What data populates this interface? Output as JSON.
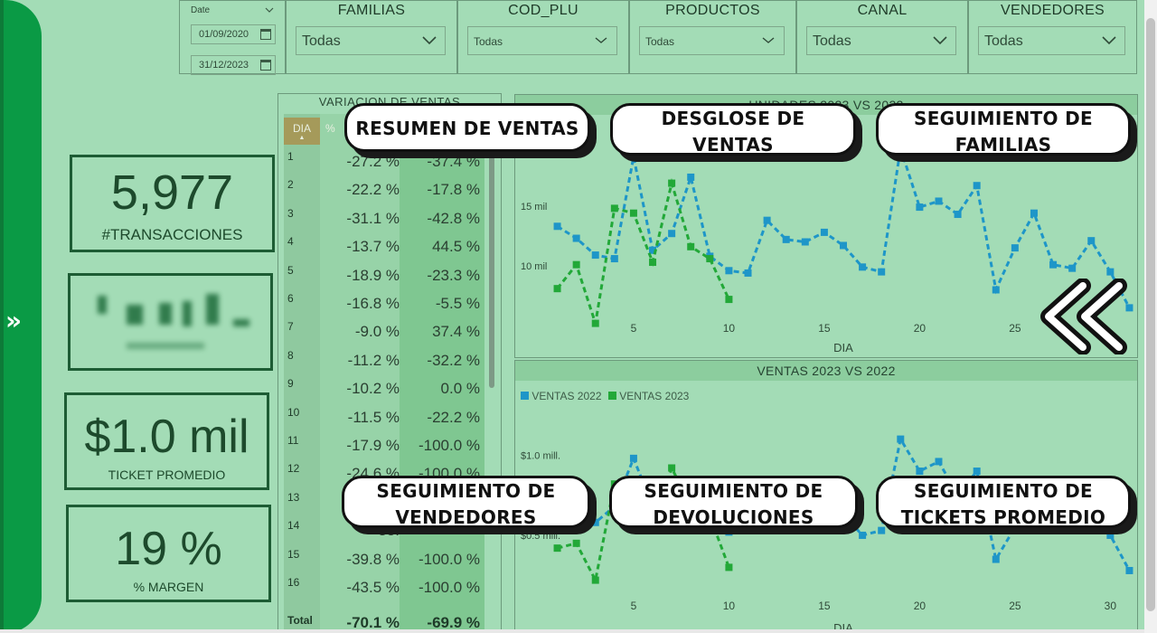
{
  "slicers": {
    "date": {
      "label": "Date",
      "start": "01/09/2020",
      "end": "31/12/2023"
    },
    "familias": {
      "title": "FAMILIAS",
      "value": "Todas"
    },
    "cod_plu": {
      "title": "COD_PLU",
      "value": "Todas"
    },
    "productos": {
      "title": "PRODUCTOS",
      "value": "Todas"
    },
    "canal": {
      "title": "CANAL",
      "value": "Todas"
    },
    "vendedores": {
      "title": "VENDEDORES",
      "value": "Todas"
    }
  },
  "kpis": {
    "transacciones": {
      "value": "5,977",
      "label": "#TRANSACCIONES"
    },
    "ticket": {
      "value": "$1.0 mil",
      "label": "TICKET PROMEDIO"
    },
    "margen": {
      "value": "19 %",
      "label": "% MARGEN"
    }
  },
  "table": {
    "title": "VARIACION DE VENTAS",
    "col_dia": "DIA",
    "col_pct": "%",
    "rows": [
      {
        "dia": "1",
        "a": "-27.2 %",
        "b": "-37.4 %"
      },
      {
        "dia": "2",
        "a": "-22.2 %",
        "b": "-17.8 %"
      },
      {
        "dia": "3",
        "a": "-31.1 %",
        "b": "-42.8 %"
      },
      {
        "dia": "4",
        "a": "-13.7 %",
        "b": "44.5 %"
      },
      {
        "dia": "5",
        "a": "-18.9 %",
        "b": "-23.3 %"
      },
      {
        "dia": "6",
        "a": "-16.8 %",
        "b": "-5.5 %"
      },
      {
        "dia": "7",
        "a": "-9.0 %",
        "b": "37.4 %"
      },
      {
        "dia": "8",
        "a": "-11.2 %",
        "b": "-32.2 %"
      },
      {
        "dia": "9",
        "a": "-10.2 %",
        "b": "0.0 %"
      },
      {
        "dia": "10",
        "a": "-11.5 %",
        "b": "-22.2 %"
      },
      {
        "dia": "11",
        "a": "-17.9 %",
        "b": "-100.0 %"
      },
      {
        "dia": "12",
        "a": "-24.6 %",
        "b": "-100.0 %"
      },
      {
        "dia": "13",
        "a": "",
        "b": ""
      },
      {
        "dia": "14",
        "a": "-35.",
        "b": ""
      },
      {
        "dia": "15",
        "a": "-39.8 %",
        "b": "-100.0 %"
      },
      {
        "dia": "16",
        "a": "-43.5 %",
        "b": "-100.0 %"
      }
    ],
    "total": {
      "label": "Total",
      "a": "-70.1 %",
      "b": "-69.9 %"
    }
  },
  "nav": {
    "resumen": "RESUMEN DE VENTAS",
    "desglose_1": "DESGLOSE DE",
    "desglose_2": "VENTAS",
    "familias_1": "SEGUIMIENTO DE",
    "familias_2": "FAMILIAS",
    "vendedores_1": "SEGUIMIENTO DE",
    "vendedores_2": "VENDEDORES",
    "devoluciones_1": "SEGUIMIENTO DE",
    "devoluciones_2": "DEVOLUCIONES",
    "tickets_1": "SEGUIMIENTO DE",
    "tickets_2": "TICKETS PROMEDIO"
  },
  "colors": {
    "series_2022": "#1e96c8",
    "series_2023": "#22a838",
    "rail": "#0a9a45"
  },
  "chart_data": [
    {
      "type": "line",
      "title": "UNIDADES 2023 VS 2022",
      "xlabel": "DIA",
      "ylabel": "",
      "x_ticks": [
        "5",
        "10",
        "15",
        "20",
        "25"
      ],
      "y_ticks": [
        "10 mil",
        "15 mil"
      ],
      "xlim": [
        0.5,
        31.5
      ],
      "ylim": [
        6000,
        22000
      ],
      "series": [
        {
          "values": [
            [
              1,
              13300
            ],
            [
              2,
              12300
            ],
            [
              3,
              10900
            ],
            [
              4,
              10600
            ],
            [
              5,
              19100
            ],
            [
              6,
              11300
            ],
            [
              7,
              12700
            ],
            [
              8,
              17400
            ],
            [
              9,
              10800
            ],
            [
              10,
              9600
            ],
            [
              11,
              9400
            ],
            [
              12,
              13800
            ],
            [
              13,
              12200
            ],
            [
              14,
              12000
            ],
            [
              15,
              12800
            ],
            [
              16,
              11700
            ],
            [
              17,
              9900
            ],
            [
              18,
              9500
            ],
            [
              19,
              19800
            ],
            [
              20,
              14900
            ],
            [
              21,
              15400
            ],
            [
              22,
              14300
            ],
            [
              23,
              16700
            ],
            [
              24,
              8000
            ],
            [
              25,
              11500
            ],
            [
              26,
              14400
            ],
            [
              27,
              10100
            ],
            [
              28,
              9800
            ],
            [
              29,
              12100
            ],
            [
              30,
              9500
            ],
            [
              31,
              6500
            ]
          ]
        },
        {
          "values": [
            [
              1,
              8100
            ],
            [
              2,
              10100
            ],
            [
              3,
              5200
            ],
            [
              4,
              14800
            ],
            [
              5,
              14400
            ],
            [
              6,
              10300
            ],
            [
              7,
              16900
            ],
            [
              8,
              11600
            ],
            [
              9,
              10600
            ],
            [
              10,
              7200
            ]
          ]
        }
      ]
    },
    {
      "type": "line",
      "title": "VENTAS 2023 VS 2022",
      "xlabel": "DIA",
      "ylabel": "",
      "x_ticks": [
        "5",
        "10",
        "15",
        "20",
        "25",
        "30"
      ],
      "y_ticks": [
        "$0.5 mill.",
        "$1.0 mill."
      ],
      "legend": [
        "VENTAS 2022",
        "VENTAS 2023"
      ],
      "xlim": [
        0.5,
        31.5
      ],
      "ylim": [
        0.15,
        1.25
      ],
      "series": [
        {
          "name": "VENTAS 2022",
          "values": [
            [
              1,
              0.68
            ],
            [
              2,
              0.62
            ],
            [
              3,
              0.58
            ],
            [
              4,
              0.68
            ],
            [
              5,
              0.98
            ],
            [
              6,
              0.68
            ],
            [
              7,
              0.81
            ],
            [
              8,
              0.75
            ],
            [
              9,
              0.71
            ],
            [
              10,
              0.52
            ],
            [
              11,
              0.55
            ],
            [
              12,
              0.56
            ],
            [
              13,
              0.75
            ],
            [
              14,
              0.7
            ],
            [
              15,
              0.78
            ],
            [
              16,
              0.63
            ],
            [
              17,
              0.5
            ],
            [
              18,
              0.53
            ],
            [
              19,
              1.1
            ],
            [
              20,
              0.9
            ],
            [
              21,
              0.96
            ],
            [
              22,
              0.75
            ],
            [
              23,
              0.9
            ],
            [
              24,
              0.35
            ],
            [
              25,
              0.55
            ],
            [
              26,
              0.75
            ],
            [
              27,
              0.7
            ],
            [
              28,
              0.55
            ],
            [
              29,
              0.78
            ],
            [
              30,
              0.5
            ],
            [
              31,
              0.28
            ]
          ]
        },
        {
          "name": "VENTAS 2023",
          "values": [
            [
              1,
              0.42
            ],
            [
              2,
              0.45
            ],
            [
              3,
              0.22
            ],
            [
              4,
              0.82
            ],
            [
              5,
              0.8
            ],
            [
              6,
              0.55
            ],
            [
              7,
              0.92
            ],
            [
              8,
              0.68
            ],
            [
              9,
              0.62
            ],
            [
              10,
              0.3
            ]
          ]
        }
      ]
    }
  ]
}
